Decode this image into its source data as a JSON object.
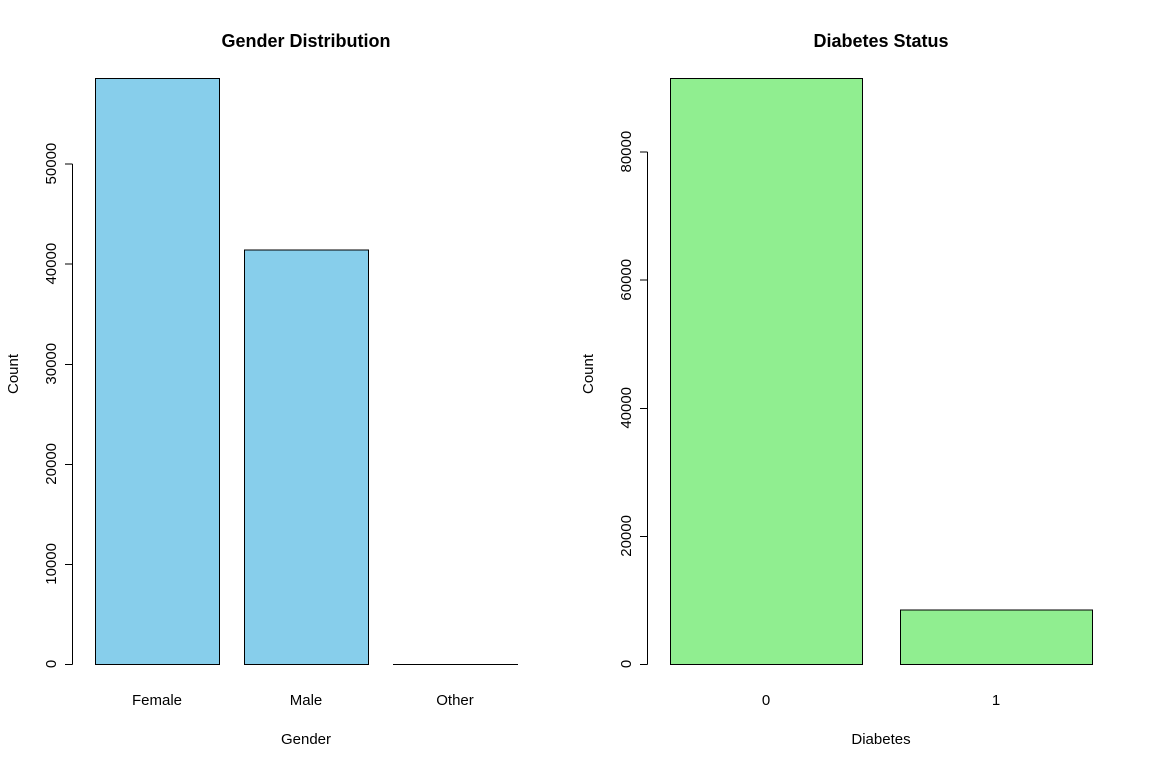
{
  "chart_data": [
    {
      "type": "bar",
      "title": "Gender Distribution",
      "xlabel": "Gender",
      "ylabel": "Count",
      "categories": [
        "Female",
        "Male",
        "Other"
      ],
      "values": [
        58552,
        41430,
        18
      ],
      "ylim": [
        0,
        58552
      ],
      "yticks": [
        0,
        10000,
        20000,
        30000,
        40000,
        50000
      ],
      "ytick_labels": [
        "0",
        "10000",
        "20000",
        "30000",
        "40000",
        "50000"
      ],
      "bar_color": "#87CEEB",
      "grid": false,
      "legend": "none"
    },
    {
      "type": "bar",
      "title": "Diabetes Status",
      "xlabel": "Diabetes",
      "ylabel": "Count",
      "categories": [
        "0",
        "1"
      ],
      "values": [
        91500,
        8500
      ],
      "ylim": [
        0,
        91500
      ],
      "yticks": [
        0,
        20000,
        40000,
        60000,
        80000
      ],
      "ytick_labels": [
        "0",
        "20000",
        "40000",
        "60000",
        "80000"
      ],
      "bar_color": "#90EE90",
      "grid": false,
      "legend": "none"
    }
  ]
}
